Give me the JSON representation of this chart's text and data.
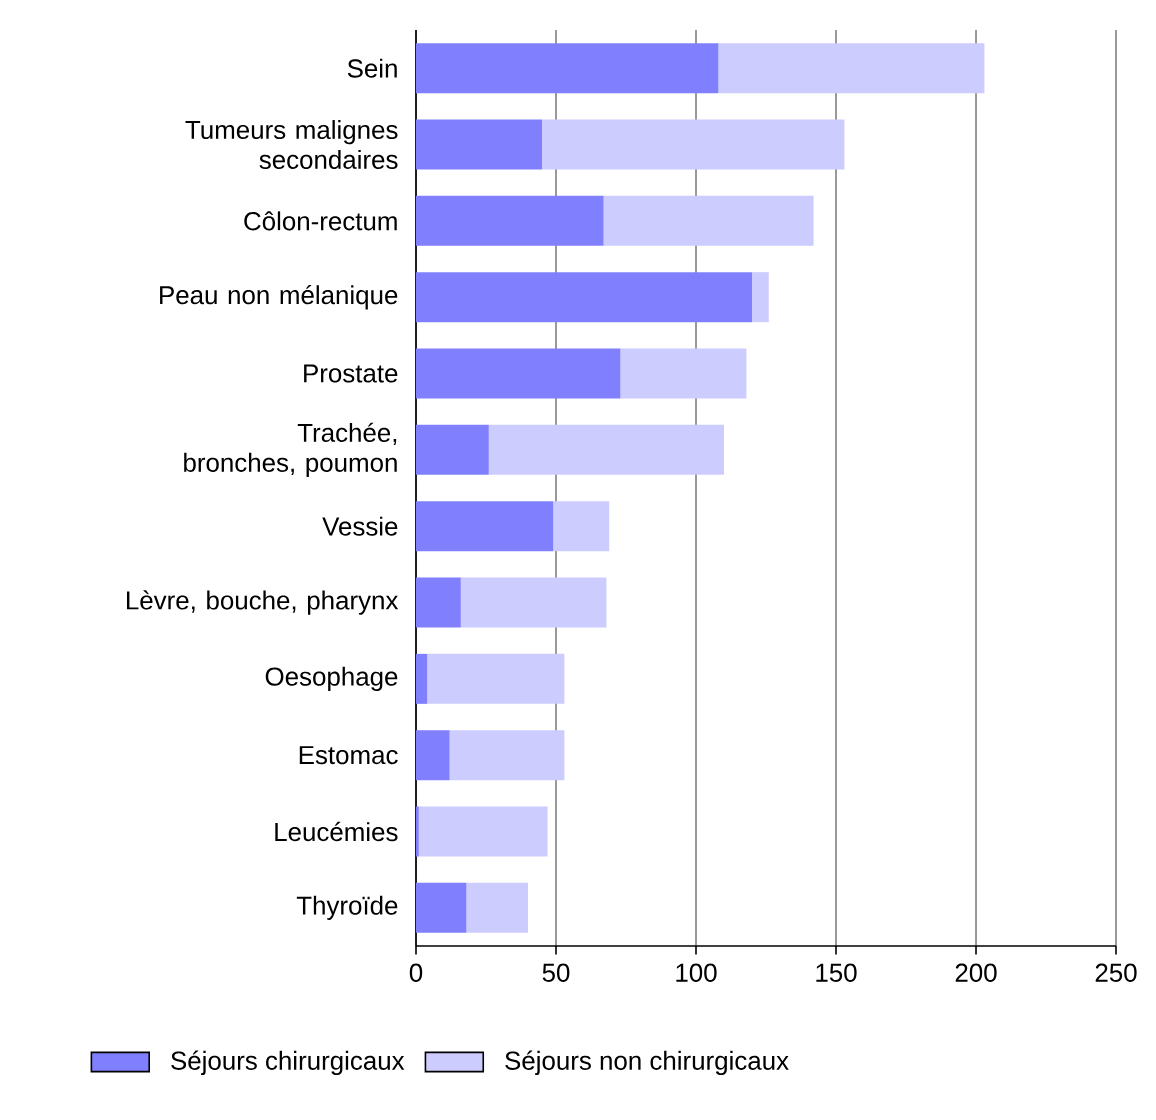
{
  "chart_data": {
    "type": "bar",
    "orientation": "horizontal",
    "stacked": true,
    "categories": [
      "Sein",
      "Tumeurs malignes secondaires",
      "Côlon-rectum",
      "Peau non mélanique",
      "Prostate",
      "Trachée, bronches, poumon",
      "Vessie",
      "Lèvre, bouche, pharynx",
      "Oesophage",
      "Estomac",
      "Leucémies",
      "Thyroïde"
    ],
    "series": [
      {
        "name": "Séjours chirurgicaux",
        "color": "#8080ff",
        "values": [
          108,
          45,
          67,
          120,
          73,
          26,
          49,
          16,
          4,
          12,
          1,
          18
        ]
      },
      {
        "name": "Séjours non chirurgicaux",
        "color": "#ccccff",
        "values": [
          95,
          108,
          75,
          6,
          45,
          84,
          20,
          52,
          49,
          41,
          46,
          22
        ]
      }
    ],
    "xlim": [
      0,
      250
    ],
    "xticks": [
      0,
      50,
      100,
      150,
      200,
      250
    ],
    "grid": "x",
    "legend": "bottom"
  }
}
